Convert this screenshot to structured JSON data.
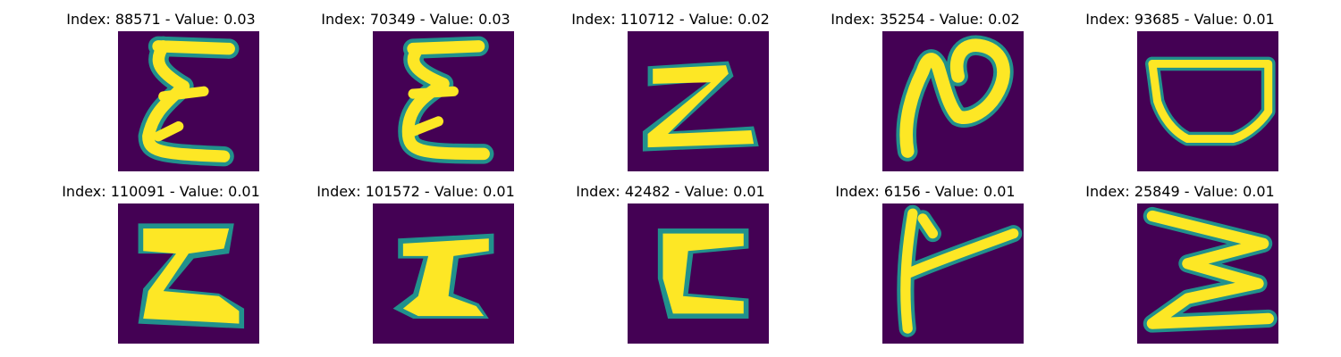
{
  "colors": {
    "background": "#440154",
    "foreground": "#fde725",
    "edge": "#21918c"
  },
  "panels": [
    {
      "title": "Index: 88571 - Value: 0.03",
      "glyph": "sigma-shape"
    },
    {
      "title": "Index: 70349 - Value: 0.03",
      "glyph": "sigma-shape"
    },
    {
      "title": "Index: 110712 - Value: 0.02",
      "glyph": "z-shape"
    },
    {
      "title": "Index: 35254 - Value: 0.02",
      "glyph": "n-loop-shape"
    },
    {
      "title": "Index: 93685 - Value: 0.01",
      "glyph": "bowl-shape"
    },
    {
      "title": "Index: 110091 - Value: 0.01",
      "glyph": "bold-sigma-shape"
    },
    {
      "title": "Index: 101572 - Value: 0.01",
      "glyph": "h-like-shape"
    },
    {
      "title": "Index: 42482 - Value: 0.01",
      "glyph": "c-shape"
    },
    {
      "title": "Index: 6156 - Value: 0.01",
      "glyph": "k-like-shape"
    },
    {
      "title": "Index: 25849 - Value: 0.01",
      "glyph": "zigzag-shape"
    }
  ]
}
